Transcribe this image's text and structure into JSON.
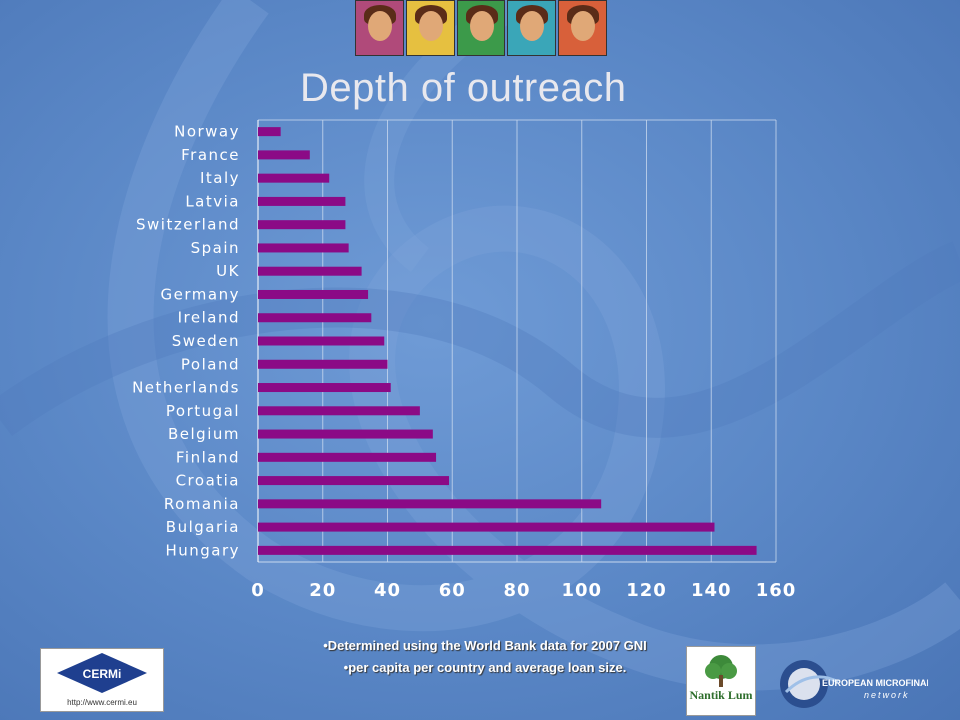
{
  "title": "Depth of outreach",
  "chart_data": {
    "type": "bar",
    "orientation": "horizontal",
    "title": "Depth of outreach",
    "categories": [
      "Norway",
      "France",
      "Italy",
      "Latvia",
      "Switzerland",
      "Spain",
      "UK",
      "Germany",
      "Ireland",
      "Sweden",
      "Poland",
      "Netherlands",
      "Portugal",
      "Belgium",
      "Finland",
      "Croatia",
      "Romania",
      "Bulgaria",
      "Hungary"
    ],
    "values": [
      7,
      16,
      22,
      27,
      27,
      28,
      32,
      34,
      35,
      39,
      40,
      41,
      50,
      54,
      55,
      59,
      106,
      141,
      154
    ],
    "xlim": [
      0,
      160
    ],
    "xticks": [
      0,
      20,
      40,
      60,
      80,
      100,
      120,
      140,
      160
    ],
    "grid": true,
    "bar_color": "#8b0a86"
  },
  "notes": {
    "line1": "•Determined using the World Bank data for 2007 GNI",
    "line2": "•per capita per country and average loan size."
  },
  "logos": {
    "cermi_name": "CERMi",
    "cermi_url": "http://www.cermi.eu",
    "nantik": "Nantik Lum",
    "emn_line1": "EUROPEAN MICROFINANCE",
    "emn_line2": "network"
  },
  "photo_colors": [
    "#b04a7a",
    "#e6c040",
    "#3c9a4a",
    "#3aa6b8",
    "#d8603a"
  ]
}
